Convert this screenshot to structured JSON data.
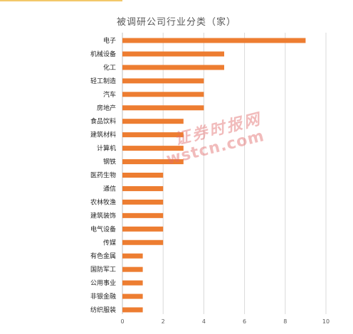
{
  "colors": {
    "bar": "#ed7d31",
    "grid": "#d9d9d9",
    "axis": "#bfbfbf"
  },
  "watermark": {
    "cn": "证券时报网",
    "url": "wstcn.com"
  },
  "chart_data": {
    "type": "bar",
    "orientation": "horizontal",
    "title": "被调研公司行业分类（家）",
    "categories": [
      "电子",
      "机械设备",
      "化工",
      "轻工制造",
      "汽车",
      "房地产",
      "食品饮料",
      "建筑材料",
      "计算机",
      "钢铁",
      "医药生物",
      "通信",
      "农林牧渔",
      "建筑装饰",
      "电气设备",
      "传媒",
      "有色金属",
      "国防军工",
      "公用事业",
      "非银金融",
      "纺织服装"
    ],
    "values": [
      9,
      5,
      5,
      4,
      4,
      4,
      3,
      3,
      3,
      3,
      2,
      2,
      2,
      2,
      2,
      2,
      1,
      1,
      1,
      1,
      1
    ],
    "xlim": [
      0,
      10
    ],
    "xticks": [
      "0",
      "2",
      "4",
      "6",
      "8",
      "10"
    ],
    "grid": true,
    "legend": "none"
  }
}
